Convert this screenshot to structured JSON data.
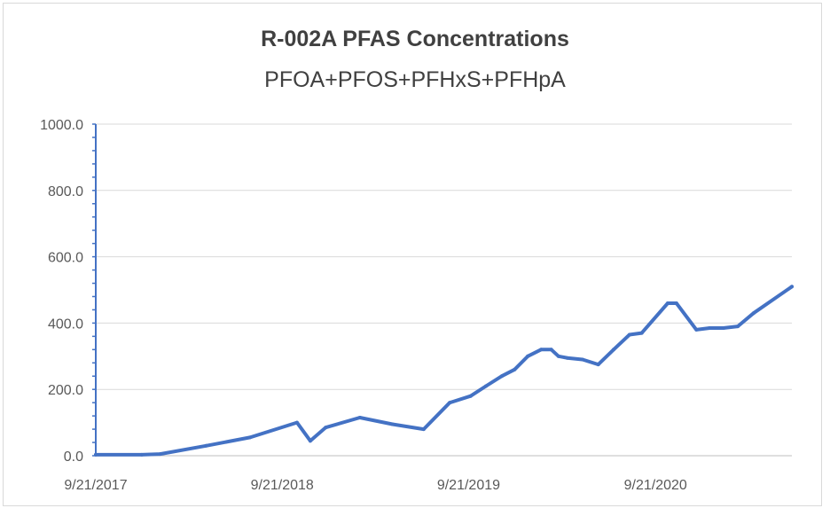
{
  "chart_data": {
    "type": "line",
    "title": "R-002A PFAS Concentrations",
    "subtitle": "PFOA+PFOS+PFHxS+PFHpA",
    "xlabel": "",
    "ylabel": "",
    "ylim": [
      0,
      1000
    ],
    "xlim": [
      "2017-09-21",
      "2021-06-15"
    ],
    "x_ticks": [
      "9/21/2017",
      "9/21/2018",
      "9/21/2019",
      "9/21/2020"
    ],
    "y_ticks": [
      "0.0",
      "200.0",
      "400.0",
      "600.0",
      "800.0",
      "1000.0"
    ],
    "grid": true,
    "legend": "none",
    "line_color": "#4472c4",
    "series": [
      {
        "x": [
          "2017-09-21",
          "2017-12-20",
          "2018-01-25",
          "2018-04-25",
          "2018-07-20",
          "2018-10-20",
          "2018-11-15",
          "2018-12-15",
          "2019-02-20",
          "2019-04-25",
          "2019-06-25",
          "2019-08-15",
          "2019-09-25",
          "2019-10-25",
          "2019-11-25",
          "2019-12-20",
          "2020-01-15",
          "2020-02-10",
          "2020-03-01",
          "2020-03-15",
          "2020-04-01",
          "2020-05-01",
          "2020-06-01",
          "2020-07-01",
          "2020-08-01",
          "2020-08-25",
          "2020-10-15",
          "2020-11-01",
          "2020-12-10",
          "2021-01-05",
          "2021-02-01",
          "2021-03-01",
          "2021-04-01",
          "2021-06-15"
        ],
        "values": [
          3,
          3,
          5,
          30,
          55,
          100,
          45,
          85,
          115,
          95,
          80,
          160,
          180,
          210,
          240,
          260,
          300,
          320,
          320,
          300,
          295,
          290,
          275,
          320,
          365,
          370,
          460,
          460,
          380,
          385,
          385,
          390,
          430,
          510
        ]
      }
    ]
  }
}
